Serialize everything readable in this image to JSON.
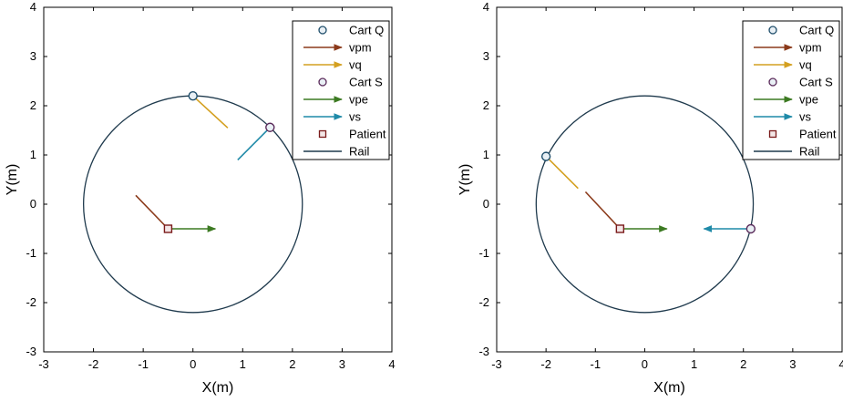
{
  "chart_data": [
    {
      "type": "scatter",
      "xlabel": "X(m)",
      "ylabel": "Y(m)",
      "xlim": [
        -3,
        4
      ],
      "ylim": [
        -3,
        4
      ],
      "xticks": [
        "-3",
        "-2",
        "-1",
        "0",
        "1",
        "2",
        "3",
        "4"
      ],
      "yticks": [
        "-3",
        "-2",
        "-1",
        "0",
        "1",
        "2",
        "3",
        "4"
      ],
      "grid": false,
      "legend_position": "top-right",
      "rail": {
        "center": [
          0,
          0
        ],
        "radius": 2.2,
        "color": "#1f3a4d"
      },
      "legend": [
        {
          "label": "Cart Q",
          "kind": "circle",
          "color": "#1f4e6b"
        },
        {
          "label": "vpm",
          "kind": "arrow",
          "color": "#8b3a1a"
        },
        {
          "label": "vq",
          "kind": "arrow",
          "color": "#d4a020"
        },
        {
          "label": "Cart S",
          "kind": "circle",
          "color": "#5a2a5a"
        },
        {
          "label": "vpe",
          "kind": "arrow",
          "color": "#3c7a22"
        },
        {
          "label": "vs",
          "kind": "arrow",
          "color": "#1f8aa8"
        },
        {
          "label": "Patient",
          "kind": "square",
          "color": "#7a1a1a"
        },
        {
          "label": "Rail",
          "kind": "line",
          "color": "#1f3a4d"
        }
      ],
      "points": [
        {
          "name": "Cart Q",
          "x": 0.0,
          "y": 2.2,
          "marker": "circle",
          "color": "#1f4e6b"
        },
        {
          "name": "Cart S",
          "x": 1.55,
          "y": 1.56,
          "marker": "circle",
          "color": "#5a2a5a"
        },
        {
          "name": "Patient",
          "x": -0.5,
          "y": -0.5,
          "marker": "square",
          "color": "#7a1a1a"
        }
      ],
      "vectors": [
        {
          "name": "vq",
          "x0": 0.0,
          "y0": 2.2,
          "x1": 0.7,
          "y1": 1.55,
          "color": "#d4a020",
          "head": false
        },
        {
          "name": "vs",
          "x0": 1.55,
          "y0": 1.56,
          "x1": 0.9,
          "y1": 0.9,
          "color": "#1f8aa8",
          "head": false
        },
        {
          "name": "vpm",
          "x0": -0.5,
          "y0": -0.5,
          "x1": -1.15,
          "y1": 0.18,
          "color": "#8b3a1a",
          "head": false
        },
        {
          "name": "vpe",
          "x0": -0.5,
          "y0": -0.5,
          "x1": 0.45,
          "y1": -0.5,
          "color": "#3c7a22",
          "head": true
        }
      ]
    },
    {
      "type": "scatter",
      "xlabel": "X(m)",
      "ylabel": "Y(m)",
      "xlim": [
        -3,
        4
      ],
      "ylim": [
        -3,
        4
      ],
      "xticks": [
        "-3",
        "-2",
        "-1",
        "0",
        "1",
        "2",
        "3",
        "4"
      ],
      "yticks": [
        "-3",
        "-2",
        "-1",
        "0",
        "1",
        "2",
        "3",
        "4"
      ],
      "grid": false,
      "legend_position": "top-right",
      "rail": {
        "center": [
          0,
          0
        ],
        "radius": 2.2,
        "color": "#1f3a4d"
      },
      "legend": [
        {
          "label": "Cart Q",
          "kind": "circle",
          "color": "#1f4e6b"
        },
        {
          "label": "vpm",
          "kind": "arrow",
          "color": "#8b3a1a"
        },
        {
          "label": "vq",
          "kind": "arrow",
          "color": "#d4a020"
        },
        {
          "label": "Cart S",
          "kind": "circle",
          "color": "#5a2a5a"
        },
        {
          "label": "vpe",
          "kind": "arrow",
          "color": "#3c7a22"
        },
        {
          "label": "vs",
          "kind": "arrow",
          "color": "#1f8aa8"
        },
        {
          "label": "Patient",
          "kind": "square",
          "color": "#7a1a1a"
        },
        {
          "label": "Rail",
          "kind": "line",
          "color": "#1f3a4d"
        }
      ],
      "points": [
        {
          "name": "Cart Q",
          "x": -2.0,
          "y": 0.97,
          "marker": "circle",
          "color": "#1f4e6b"
        },
        {
          "name": "Cart S",
          "x": 2.15,
          "y": -0.5,
          "marker": "circle",
          "color": "#5a2a5a"
        },
        {
          "name": "Patient",
          "x": -0.5,
          "y": -0.5,
          "marker": "square",
          "color": "#7a1a1a"
        }
      ],
      "vectors": [
        {
          "name": "vq",
          "x0": -2.0,
          "y0": 0.97,
          "x1": -1.35,
          "y1": 0.32,
          "color": "#d4a020",
          "head": false
        },
        {
          "name": "vpm",
          "x0": -0.5,
          "y0": -0.5,
          "x1": -1.2,
          "y1": 0.25,
          "color": "#8b3a1a",
          "head": false
        },
        {
          "name": "vpe",
          "x0": -0.5,
          "y0": -0.5,
          "x1": 0.45,
          "y1": -0.5,
          "color": "#3c7a22",
          "head": true
        },
        {
          "name": "vs",
          "x0": 2.15,
          "y0": -0.5,
          "x1": 1.2,
          "y1": -0.5,
          "color": "#1f8aa8",
          "head": true
        }
      ]
    }
  ]
}
